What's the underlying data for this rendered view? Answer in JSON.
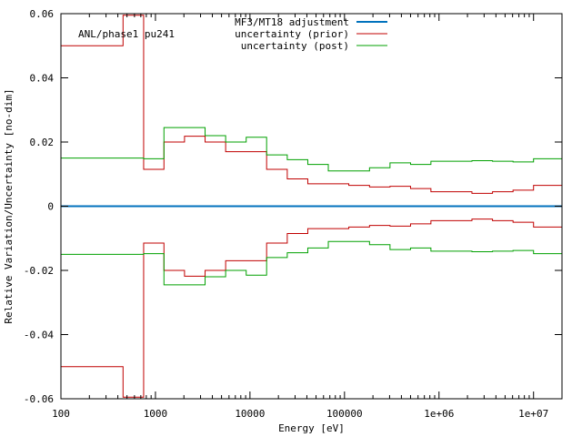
{
  "chart_data": {
    "type": "line",
    "title": "",
    "annotation": "ANL/phase1 pu241",
    "xlabel": "Energy [eV]",
    "ylabel": "Relative Variation/Uncertainty [no-dim]",
    "xscale": "log",
    "xlim": [
      100,
      20000000
    ],
    "ylim": [
      -0.06,
      0.06
    ],
    "x_ticks": [
      {
        "value": 100,
        "label": "100"
      },
      {
        "value": 1000,
        "label": "1000"
      },
      {
        "value": 10000,
        "label": "10000"
      },
      {
        "value": 100000,
        "label": "100000"
      },
      {
        "value": 1000000,
        "label": "1e+06"
      },
      {
        "value": 10000000,
        "label": "1e+07"
      }
    ],
    "y_ticks": [
      {
        "value": -0.06,
        "label": "-0.06"
      },
      {
        "value": -0.04,
        "label": "-0.04"
      },
      {
        "value": -0.02,
        "label": "-0.02"
      },
      {
        "value": 0,
        "label": "0"
      },
      {
        "value": 0.02,
        "label": "0.02"
      },
      {
        "value": 0.04,
        "label": "0.04"
      },
      {
        "value": 0.06,
        "label": "0.06"
      }
    ],
    "grid": false,
    "legend_position": "top-center",
    "bin_edges": [
      100,
      454,
      750,
      1230,
      2030,
      3350,
      5530,
      9120,
      15000,
      24800,
      40900,
      67400,
      111000,
      184000,
      303000,
      500000,
      821000,
      1350000,
      2230000,
      3680000,
      6070000,
      10000000,
      20000000
    ],
    "series": [
      {
        "name": "MF3/MT18 adjustment",
        "color": "#0072bd",
        "style": "flat",
        "values": [
          0,
          0,
          0,
          0,
          0,
          0,
          0,
          0,
          0,
          0,
          0,
          0,
          0,
          0,
          0,
          0,
          0,
          0,
          0,
          0,
          0,
          0
        ]
      },
      {
        "name": "uncertainty (prior)",
        "color": "#c00000",
        "style": "mirrored-steps",
        "values": [
          0.05,
          0.0595,
          0.0115,
          0.02,
          0.0218,
          0.02,
          0.017,
          0.017,
          0.0115,
          0.0085,
          0.007,
          0.007,
          0.0065,
          0.006,
          0.0062,
          0.0055,
          0.0045,
          0.0045,
          0.004,
          0.0045,
          0.005,
          0.0065
        ]
      },
      {
        "name": "uncertainty (post)",
        "color": "#00a000",
        "style": "mirrored-steps",
        "values": [
          0.015,
          0.015,
          0.0148,
          0.0245,
          0.0245,
          0.022,
          0.02,
          0.0215,
          0.016,
          0.0145,
          0.013,
          0.011,
          0.011,
          0.012,
          0.0135,
          0.013,
          0.014,
          0.014,
          0.0142,
          0.014,
          0.0138,
          0.0148
        ]
      }
    ]
  }
}
